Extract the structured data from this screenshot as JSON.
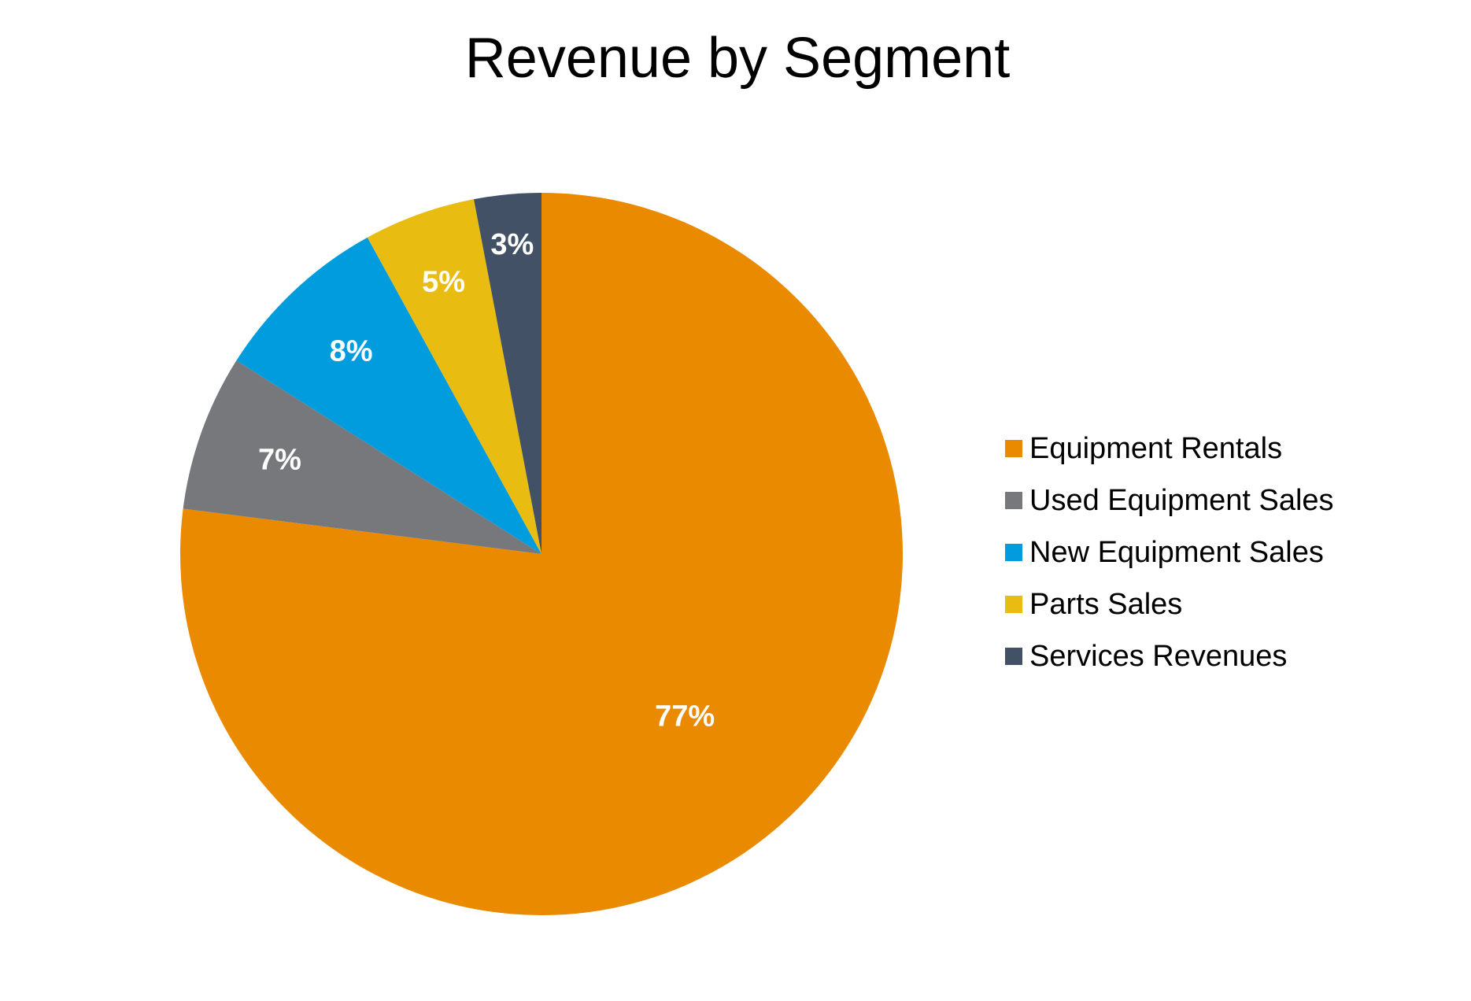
{
  "chart_data": {
    "type": "pie",
    "title": "Revenue by Segment",
    "categories": [
      "Equipment Rentals",
      "Used Equipment Sales",
      "New Equipment Sales",
      "Parts Sales",
      "Services Revenues"
    ],
    "values": [
      77,
      7,
      8,
      5,
      3
    ],
    "data_labels": [
      "77%",
      "7%",
      "8%",
      "5%",
      "3%"
    ],
    "colors": [
      "#E98A00",
      "#76787B",
      "#009CDE",
      "#E9BC12",
      "#435166"
    ],
    "start_angle": "12 o'clock",
    "direction": "clockwise",
    "legend_position": "right"
  }
}
